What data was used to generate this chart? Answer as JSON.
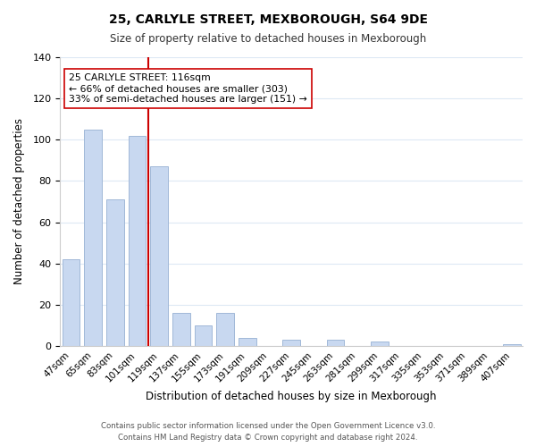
{
  "title": "25, CARLYLE STREET, MEXBOROUGH, S64 9DE",
  "subtitle": "Size of property relative to detached houses in Mexborough",
  "xlabel": "Distribution of detached houses by size in Mexborough",
  "ylabel": "Number of detached properties",
  "bar_color": "#c8d8f0",
  "bar_edge_color": "#a0b8d8",
  "categories": [
    "47sqm",
    "65sqm",
    "83sqm",
    "101sqm",
    "119sqm",
    "137sqm",
    "155sqm",
    "173sqm",
    "191sqm",
    "209sqm",
    "227sqm",
    "245sqm",
    "263sqm",
    "281sqm",
    "299sqm",
    "317sqm",
    "335sqm",
    "353sqm",
    "371sqm",
    "389sqm",
    "407sqm"
  ],
  "values": [
    42,
    105,
    71,
    102,
    87,
    16,
    10,
    16,
    4,
    0,
    3,
    0,
    3,
    0,
    2,
    0,
    0,
    0,
    0,
    0,
    1
  ],
  "ylim": [
    0,
    140
  ],
  "yticks": [
    0,
    20,
    40,
    60,
    80,
    100,
    120,
    140
  ],
  "vline_color": "#cc0000",
  "vline_x": 3.5,
  "annotation_text": "25 CARLYLE STREET: 116sqm\n← 66% of detached houses are smaller (303)\n33% of semi-detached houses are larger (151) →",
  "annotation_box_color": "#ffffff",
  "annotation_box_edge": "#cc0000",
  "footer1": "Contains HM Land Registry data © Crown copyright and database right 2024.",
  "footer2": "Contains public sector information licensed under the Open Government Licence v3.0.",
  "background_color": "#ffffff",
  "grid_color": "#dde8f4"
}
